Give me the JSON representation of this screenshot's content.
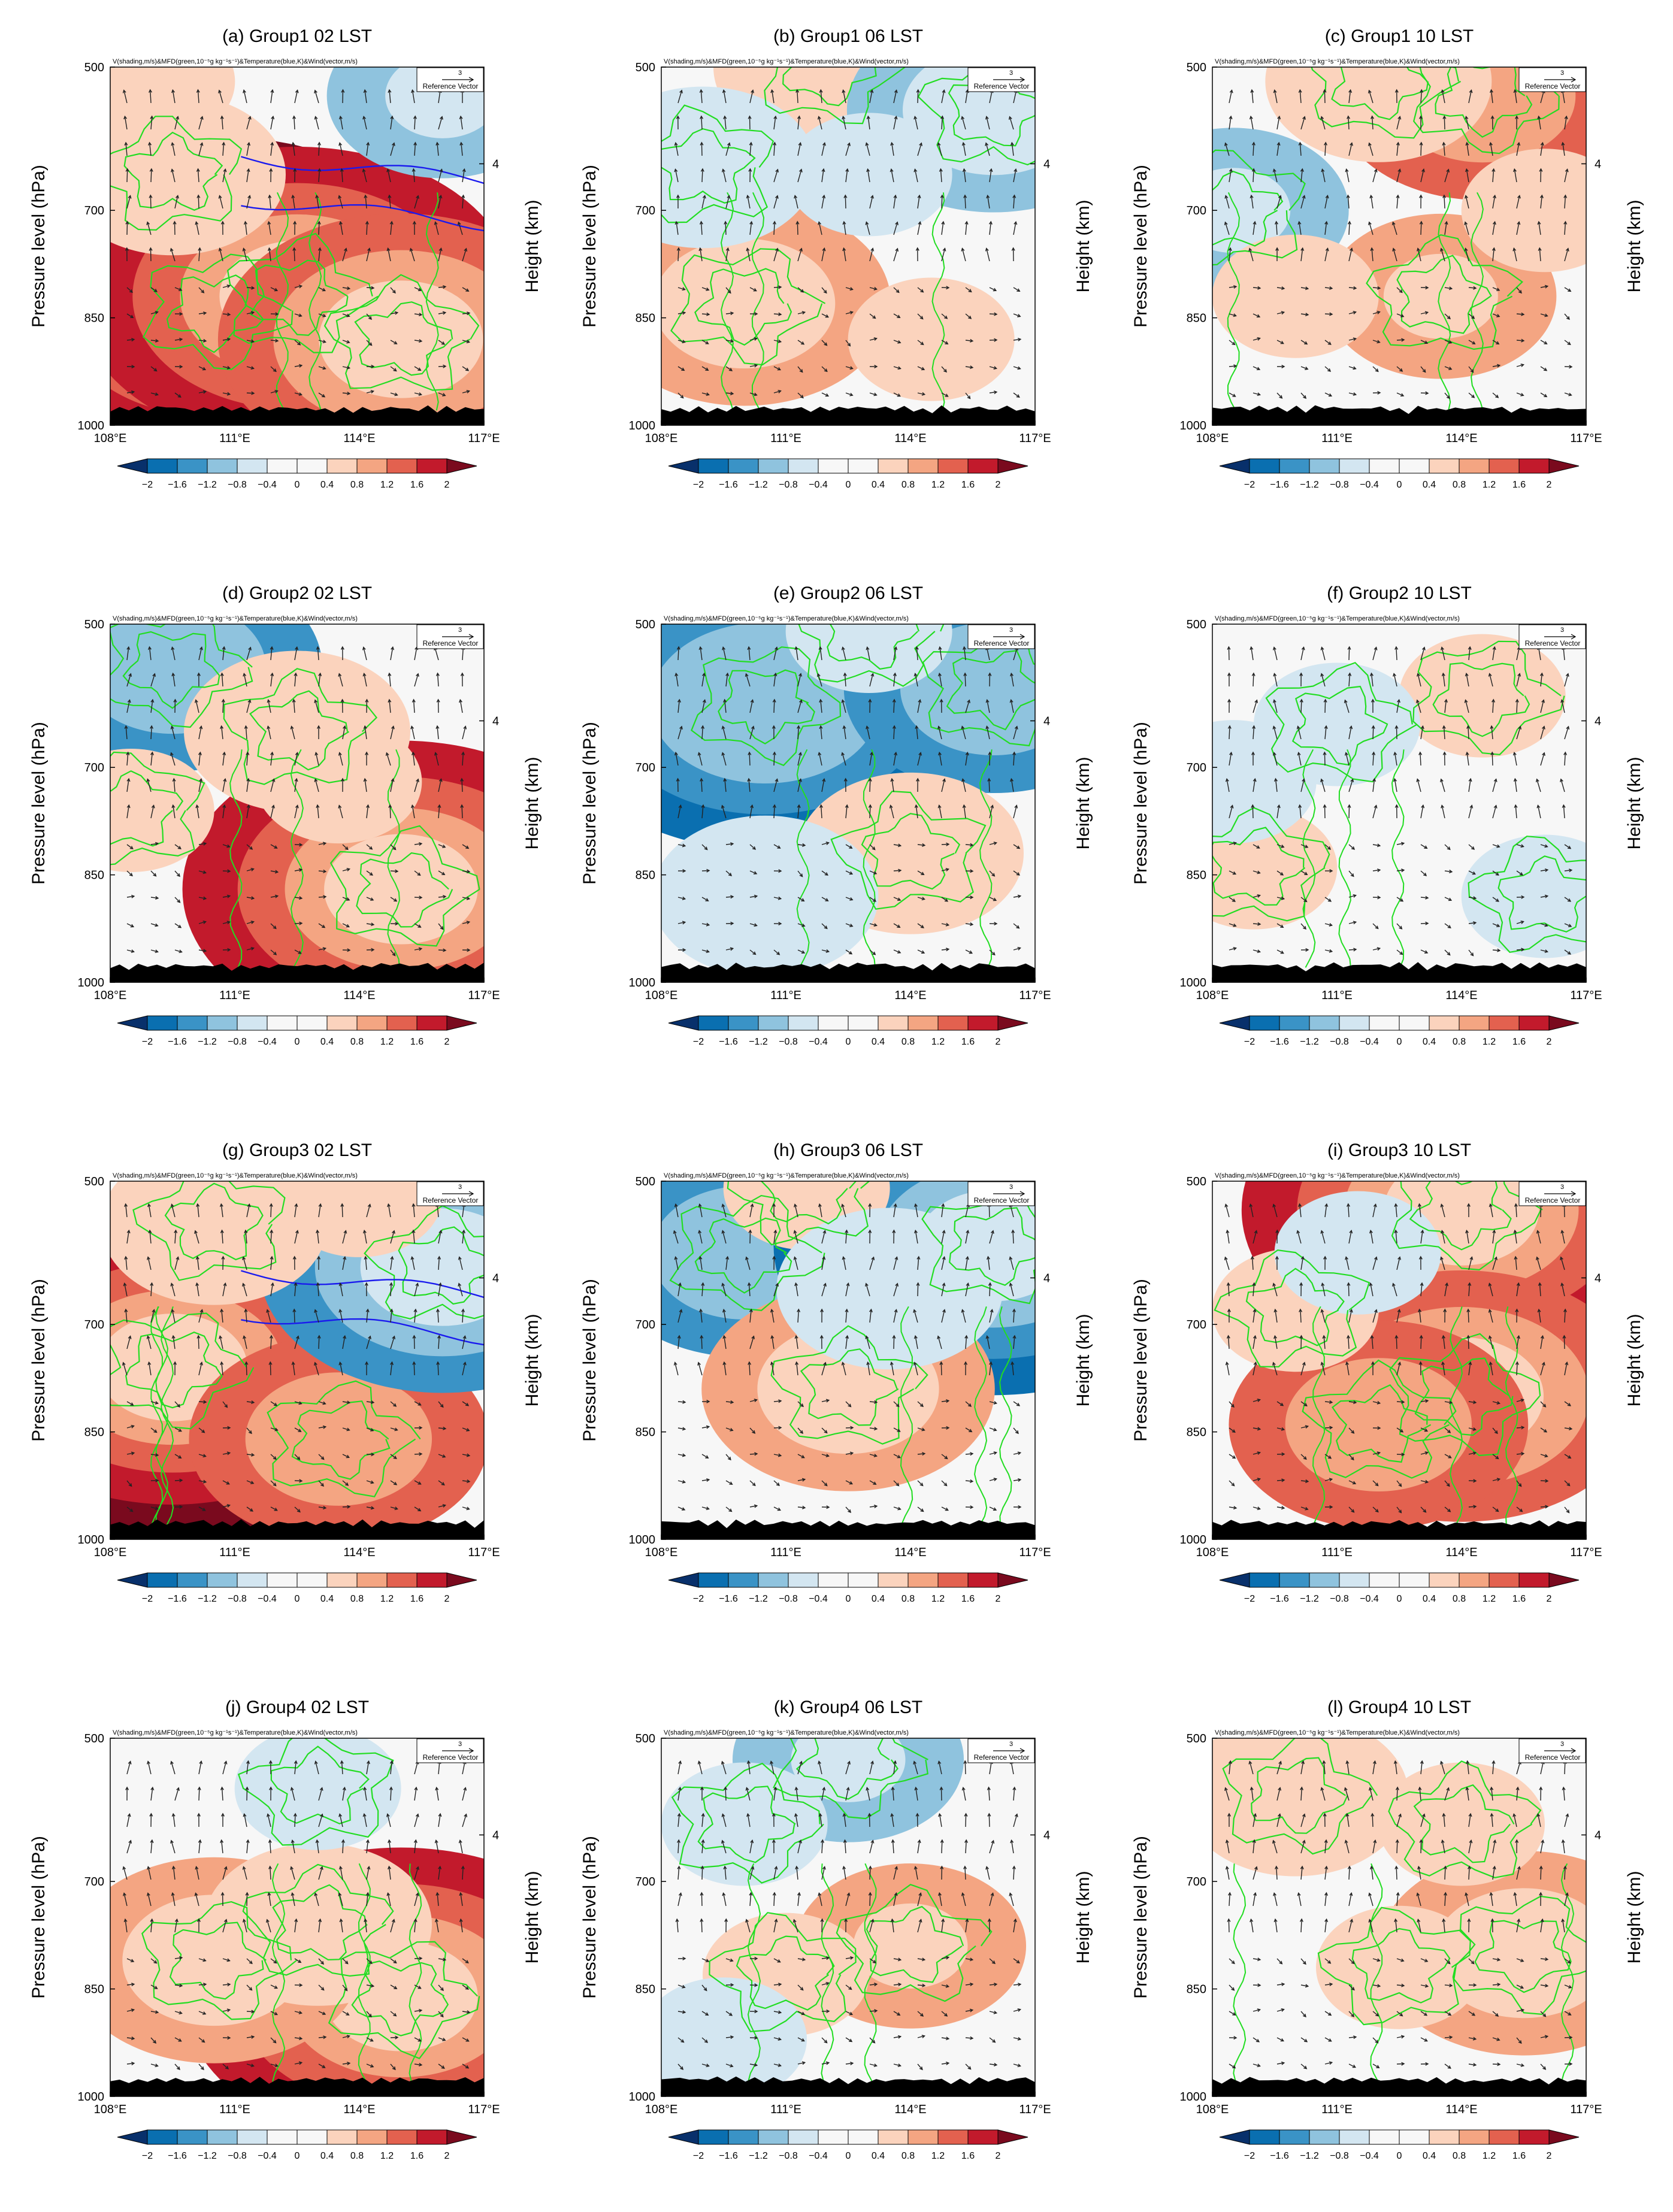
{
  "figure": {
    "header_text": "V(shading,m/s)&MFD(green,10⁻⁵g kg⁻¹s⁻¹)&Temperature(blue,K)&Wind(vector,m/s)",
    "ref_vector_value": "3",
    "ref_vector_label": "Reference Vector",
    "ylabel_left": "Pressure level (hPa)",
    "ylabel_right": "Height (km)",
    "y_ticks": [
      "500",
      "700",
      "850",
      "1000"
    ],
    "right_tick": "4",
    "x_ticks": [
      "108°E",
      "111°E",
      "114°E",
      "117°E"
    ],
    "colorbar": {
      "labels": [
        "−2",
        "−1.6",
        "−1.2",
        "−0.8",
        "−0.4",
        "0",
        "0.4",
        "0.8",
        "1.2",
        "1.6",
        "2"
      ],
      "colors": [
        "#08306b",
        "#0a6fb0",
        "#3a93c6",
        "#8fc3de",
        "#d3e6f1",
        "#f7f7f7",
        "#f7f7f7",
        "#fbd3bd",
        "#f4a582",
        "#e3614f",
        "#c21a2c",
        "#7a0a1e"
      ]
    },
    "colors": {
      "mfd": "#22dd22",
      "temperature": "#1a1aee",
      "terrain": "#000000"
    }
  },
  "chart_data": [
    {
      "type": "heatmap",
      "title": "(a) Group1 02 LST",
      "xlabel": "",
      "ylabel": "Pressure level (hPa)",
      "xlim": [
        "108°E",
        "117°E"
      ],
      "ylim": [
        1000,
        500
      ],
      "features": [
        {
          "var": "V",
          "lon": 110.5,
          "p": 840,
          "value": 2.2
        },
        {
          "var": "V",
          "lon": 112.5,
          "p": 820,
          "value": 1.8
        },
        {
          "var": "V",
          "lon": 115.0,
          "p": 880,
          "value": 1.4
        },
        {
          "var": "V",
          "lon": 109.5,
          "p": 650,
          "value": 0.5
        },
        {
          "var": "V",
          "lon": 116.0,
          "p": 540,
          "value": -0.8
        },
        {
          "var": "V",
          "lon": 109.0,
          "p": 520,
          "value": 0.4
        },
        {
          "var": "temperature_contour",
          "value": 2
        },
        {
          "var": "temperature_contour",
          "value": 1
        }
      ]
    },
    {
      "type": "heatmap",
      "title": "(b) Group1 06 LST",
      "xlabel": "",
      "ylabel": "Pressure level (hPa)",
      "xlim": [
        "108°E",
        "117°E"
      ],
      "ylim": [
        1000,
        500
      ],
      "features": [
        {
          "var": "V",
          "lon": 110.0,
          "p": 830,
          "value": 0.9
        },
        {
          "var": "V",
          "lon": 112.0,
          "p": 500,
          "value": 0.6
        },
        {
          "var": "V",
          "lon": 116.0,
          "p": 560,
          "value": -0.9
        },
        {
          "var": "V",
          "lon": 109.0,
          "p": 640,
          "value": -0.5
        },
        {
          "var": "V",
          "lon": 113.0,
          "p": 650,
          "value": -0.4
        },
        {
          "var": "V",
          "lon": 114.5,
          "p": 880,
          "value": 0.4
        }
      ]
    },
    {
      "type": "heatmap",
      "title": "(c) Group1 10 LST",
      "xlabel": "",
      "ylabel": "Pressure level (hPa)",
      "xlim": [
        "108°E",
        "117°E"
      ],
      "ylim": [
        1000,
        500
      ],
      "features": [
        {
          "var": "V",
          "lon": 114.5,
          "p": 540,
          "value": 1.2
        },
        {
          "var": "V",
          "lon": 112.0,
          "p": 520,
          "value": 0.5
        },
        {
          "var": "V",
          "lon": 113.5,
          "p": 820,
          "value": 0.8
        },
        {
          "var": "V",
          "lon": 108.5,
          "p": 700,
          "value": -0.8
        },
        {
          "var": "V",
          "lon": 110.0,
          "p": 820,
          "value": 0.4
        },
        {
          "var": "V",
          "lon": 116.0,
          "p": 700,
          "value": 0.4
        }
      ]
    },
    {
      "type": "heatmap",
      "title": "(d) Group2 02 LST",
      "xlabel": "",
      "ylabel": "Pressure level (hPa)",
      "xlim": [
        "108°E",
        "117°E"
      ],
      "ylim": [
        1000,
        500
      ],
      "features": [
        {
          "var": "V",
          "lon": 109.5,
          "p": 560,
          "value": -1.2
        },
        {
          "var": "V",
          "lon": 115.0,
          "p": 870,
          "value": 1.7
        },
        {
          "var": "V",
          "lon": 112.5,
          "p": 650,
          "value": 0.5
        },
        {
          "var": "V",
          "lon": 108.5,
          "p": 760,
          "value": 0.4
        },
        {
          "var": "V",
          "lon": 113.5,
          "p": 720,
          "value": 0.4
        }
      ]
    },
    {
      "type": "heatmap",
      "title": "(e) Group2 06 LST",
      "xlabel": "",
      "ylabel": "Pressure level (hPa)",
      "xlim": [
        "108°E",
        "117°E"
      ],
      "ylim": [
        1000,
        500
      ],
      "features": [
        {
          "var": "V",
          "lon": 110.5,
          "p": 610,
          "value": -1.6
        },
        {
          "var": "V",
          "lon": 116.0,
          "p": 590,
          "value": -1.2
        },
        {
          "var": "V",
          "lon": 113.0,
          "p": 510,
          "value": -0.4
        },
        {
          "var": "V",
          "lon": 114.0,
          "p": 820,
          "value": 0.5
        },
        {
          "var": "V",
          "lon": 110.5,
          "p": 880,
          "value": -0.5
        }
      ]
    },
    {
      "type": "heatmap",
      "title": "(f) Group2 10 LST",
      "xlabel": "",
      "ylabel": "Pressure level (hPa)",
      "xlim": [
        "108°E",
        "117°E"
      ],
      "ylim": [
        1000,
        500
      ],
      "features": [
        {
          "var": "V",
          "lon": 114.5,
          "p": 600,
          "value": 0.4
        },
        {
          "var": "V",
          "lon": 111.0,
          "p": 640,
          "value": -0.4
        },
        {
          "var": "V",
          "lon": 109.0,
          "p": 840,
          "value": 0.4
        },
        {
          "var": "V",
          "lon": 116.0,
          "p": 880,
          "value": -0.4
        },
        {
          "var": "V",
          "lon": 108.5,
          "p": 720,
          "value": -0.4
        }
      ]
    },
    {
      "type": "heatmap",
      "title": "(g) Group3 02 LST",
      "xlabel": "",
      "ylabel": "Pressure level (hPa)",
      "xlim": [
        "108°E",
        "117°E"
      ],
      "ylim": [
        1000,
        500
      ],
      "features": [
        {
          "var": "V",
          "lon": 109.5,
          "p": 760,
          "value": 2.1
        },
        {
          "var": "V",
          "lon": 113.5,
          "p": 860,
          "value": 1.2
        },
        {
          "var": "V",
          "lon": 116.0,
          "p": 620,
          "value": -1.4
        },
        {
          "var": "V",
          "lon": 110.5,
          "p": 560,
          "value": 0.5
        },
        {
          "var": "V",
          "lon": 114.0,
          "p": 520,
          "value": 0.4
        },
        {
          "var": "temperature_contour",
          "value": 2
        },
        {
          "var": "temperature_contour",
          "value": 1
        }
      ]
    },
    {
      "type": "heatmap",
      "title": "(h) Group3 06 LST",
      "xlabel": "",
      "ylabel": "Pressure level (hPa)",
      "xlim": [
        "108°E",
        "117°E"
      ],
      "ylim": [
        1000,
        500
      ],
      "features": [
        {
          "var": "V",
          "lon": 110.0,
          "p": 600,
          "value": -1.2
        },
        {
          "var": "V",
          "lon": 116.0,
          "p": 590,
          "value": -1.8
        },
        {
          "var": "V",
          "lon": 112.5,
          "p": 790,
          "value": 0.9
        },
        {
          "var": "V",
          "lon": 111.5,
          "p": 510,
          "value": 0.4
        },
        {
          "var": "V",
          "lon": 113.5,
          "p": 650,
          "value": -0.5
        }
      ]
    },
    {
      "type": "heatmap",
      "title": "(i) Group3 10 LST",
      "xlabel": "",
      "ylabel": "Pressure level (hPa)",
      "xlim": [
        "108°E",
        "117°E"
      ],
      "ylim": [
        1000,
        500
      ],
      "features": [
        {
          "var": "V",
          "lon": 114.0,
          "p": 540,
          "value": 1.8
        },
        {
          "var": "V",
          "lon": 114.0,
          "p": 800,
          "value": 1.4
        },
        {
          "var": "V",
          "lon": 112.0,
          "p": 840,
          "value": 1.2
        },
        {
          "var": "V",
          "lon": 110.0,
          "p": 680,
          "value": 0.4
        },
        {
          "var": "V",
          "lon": 111.5,
          "p": 600,
          "value": -0.4
        }
      ]
    },
    {
      "type": "heatmap",
      "title": "(j) Group4 02 LST",
      "xlabel": "",
      "ylabel": "Pressure level (hPa)",
      "xlim": [
        "108°E",
        "117°E"
      ],
      "ylim": [
        1000,
        500
      ],
      "features": [
        {
          "var": "V",
          "lon": 115.0,
          "p": 860,
          "value": 1.7
        },
        {
          "var": "V",
          "lon": 110.5,
          "p": 810,
          "value": 1.0
        },
        {
          "var": "V",
          "lon": 113.0,
          "p": 760,
          "value": 0.6
        },
        {
          "var": "V",
          "lon": 113.0,
          "p": 570,
          "value": -0.4
        }
      ]
    },
    {
      "type": "heatmap",
      "title": "(k) Group4 06 LST",
      "xlabel": "",
      "ylabel": "Pressure level (hPa)",
      "xlim": [
        "108°E",
        "117°E"
      ],
      "ylim": [
        1000,
        500
      ],
      "features": [
        {
          "var": "V",
          "lon": 112.5,
          "p": 530,
          "value": -0.8
        },
        {
          "var": "V",
          "lon": 110.0,
          "p": 620,
          "value": -0.4
        },
        {
          "var": "V",
          "lon": 114.0,
          "p": 790,
          "value": 0.8
        },
        {
          "var": "V",
          "lon": 111.0,
          "p": 830,
          "value": 0.4
        },
        {
          "var": "V",
          "lon": 109.5,
          "p": 920,
          "value": -0.4
        }
      ]
    },
    {
      "type": "heatmap",
      "title": "(l) Group4 10 LST",
      "xlabel": "",
      "ylabel": "Pressure level (hPa)",
      "xlim": [
        "108°E",
        "117°E"
      ],
      "ylim": [
        1000,
        500
      ],
      "features": [
        {
          "var": "V",
          "lon": 115.5,
          "p": 800,
          "value": 0.9
        },
        {
          "var": "V",
          "lon": 110.0,
          "p": 580,
          "value": 0.5
        },
        {
          "var": "V",
          "lon": 114.0,
          "p": 620,
          "value": 0.4
        },
        {
          "var": "V",
          "lon": 112.5,
          "p": 820,
          "value": 0.4
        }
      ]
    }
  ]
}
